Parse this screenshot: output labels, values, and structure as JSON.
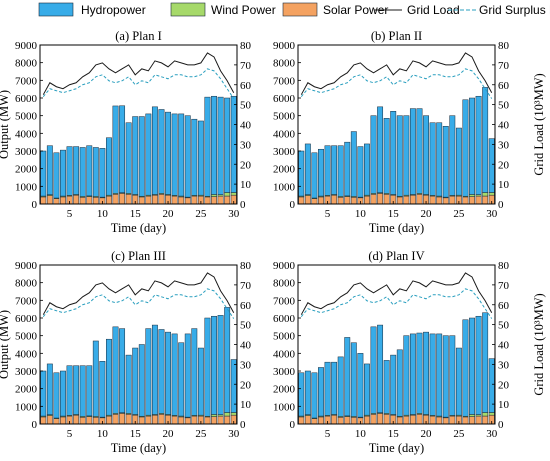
{
  "legend": {
    "hydro": "Hydropower",
    "wind": "Wind Power",
    "solar": "Solar Power",
    "grid_load": "Grid Load",
    "grid_surplus": "Grid Surplus Load"
  },
  "colors": {
    "hydro": "#38ace8",
    "wind": "#a6d96a",
    "solar": "#f4a261",
    "bar_edge": "#1a2a3a",
    "grid_load": "#1a1a1a",
    "grid_surplus": "#2a9fbf"
  },
  "axis_labels": {
    "x": "Time (day)",
    "y_left": "Output (MW)",
    "y_right": "Grid Load (10³MW)"
  },
  "chart_data": [
    {
      "type": "bar",
      "title": "(a) Plan I",
      "x": [
        1,
        2,
        3,
        4,
        5,
        6,
        7,
        8,
        9,
        10,
        11,
        12,
        13,
        14,
        15,
        16,
        17,
        18,
        19,
        20,
        21,
        22,
        23,
        24,
        25,
        26,
        27,
        28,
        29,
        30
      ],
      "xticks": [
        5,
        10,
        15,
        20,
        25,
        30
      ],
      "ylim_left": [
        0,
        9000
      ],
      "yticks_left": [
        0,
        1000,
        2000,
        3000,
        4000,
        5000,
        6000,
        7000,
        8000,
        9000
      ],
      "ylim_right": [
        0,
        80
      ],
      "yticks_right": [
        0,
        10,
        20,
        30,
        40,
        50,
        60,
        70,
        80
      ],
      "stacked": true,
      "series": [
        {
          "name": "Solar Power",
          "values": [
            400,
            480,
            300,
            400,
            450,
            500,
            380,
            420,
            380,
            350,
            450,
            550,
            600,
            550,
            500,
            400,
            450,
            500,
            550,
            500,
            450,
            400,
            350,
            450,
            450,
            400,
            420,
            450,
            450,
            500
          ]
        },
        {
          "name": "Wind Power",
          "values": [
            50,
            50,
            40,
            50,
            40,
            40,
            50,
            40,
            50,
            40,
            50,
            50,
            40,
            50,
            40,
            40,
            50,
            40,
            50,
            40,
            40,
            50,
            40,
            40,
            50,
            40,
            120,
            80,
            200,
            150
          ]
        },
        {
          "name": "Hydropower",
          "values": [
            2550,
            2770,
            2560,
            2600,
            2760,
            2710,
            2770,
            2840,
            2770,
            2760,
            3250,
            4950,
            4920,
            4000,
            4410,
            4510,
            4600,
            4960,
            4750,
            4660,
            4610,
            4650,
            4610,
            4310,
            4200,
            5610,
            5560,
            5520,
            5350,
            5450
          ]
        }
      ],
      "lines": [
        {
          "name": "Grid Load",
          "axis": "right",
          "values": [
            55,
            61,
            59,
            58,
            60,
            61,
            64,
            66,
            70,
            71,
            68,
            66,
            68,
            70,
            65,
            68,
            67,
            72,
            71,
            69,
            72,
            71,
            70,
            70,
            71,
            76,
            74,
            67,
            62,
            56
          ]
        },
        {
          "name": "Grid Surplus Load",
          "axis": "right",
          "values": [
            54,
            58,
            57,
            56,
            57,
            58,
            60,
            61,
            64,
            65,
            62,
            61,
            62,
            64,
            60,
            62,
            61,
            65,
            64,
            63,
            65,
            65,
            64,
            64,
            65,
            68,
            67,
            63,
            58,
            53
          ]
        }
      ]
    },
    {
      "type": "bar",
      "title": "(b) Plan II",
      "x": [
        1,
        2,
        3,
        4,
        5,
        6,
        7,
        8,
        9,
        10,
        11,
        12,
        13,
        14,
        15,
        16,
        17,
        18,
        19,
        20,
        21,
        22,
        23,
        24,
        25,
        26,
        27,
        28,
        29,
        30
      ],
      "xticks": [
        5,
        10,
        15,
        20,
        25,
        30
      ],
      "ylim_left": [
        0,
        9000
      ],
      "yticks_left": [
        0,
        1000,
        2000,
        3000,
        4000,
        5000,
        6000,
        7000,
        8000,
        9000
      ],
      "ylim_right": [
        0,
        80
      ],
      "yticks_right": [
        0,
        10,
        20,
        30,
        40,
        50,
        60,
        70,
        80
      ],
      "stacked": true,
      "series": [
        {
          "name": "Solar Power",
          "values": [
            400,
            480,
            300,
            400,
            450,
            500,
            380,
            420,
            380,
            350,
            450,
            550,
            600,
            550,
            500,
            400,
            450,
            500,
            550,
            500,
            450,
            400,
            350,
            450,
            450,
            400,
            420,
            450,
            450,
            500
          ]
        },
        {
          "name": "Wind Power",
          "values": [
            50,
            50,
            40,
            50,
            40,
            40,
            50,
            40,
            50,
            40,
            50,
            50,
            40,
            50,
            40,
            40,
            50,
            40,
            50,
            40,
            40,
            50,
            40,
            40,
            50,
            40,
            120,
            80,
            200,
            150
          ]
        },
        {
          "name": "Hydropower",
          "values": [
            2550,
            2870,
            2560,
            2650,
            2810,
            2760,
            2870,
            3040,
            3670,
            2860,
            2900,
            4400,
            4860,
            4250,
            4710,
            4560,
            4500,
            4860,
            4800,
            4460,
            4110,
            4150,
            4010,
            4510,
            3800,
            5460,
            5460,
            5570,
            5950,
            3050
          ]
        }
      ],
      "lines": [
        {
          "name": "Grid Load",
          "axis": "right",
          "values": [
            55,
            61,
            59,
            58,
            60,
            61,
            64,
            66,
            70,
            71,
            68,
            66,
            68,
            70,
            65,
            68,
            67,
            72,
            71,
            69,
            72,
            71,
            70,
            70,
            71,
            76,
            74,
            67,
            62,
            56
          ]
        },
        {
          "name": "Grid Surplus Load",
          "axis": "right",
          "values": [
            54,
            58,
            57,
            56,
            57,
            58,
            60,
            61,
            64,
            65,
            62,
            61,
            62,
            64,
            60,
            62,
            61,
            65,
            64,
            63,
            65,
            65,
            64,
            64,
            65,
            68,
            67,
            63,
            58,
            53
          ]
        }
      ]
    },
    {
      "type": "bar",
      "title": "(c) Plan III",
      "x": [
        1,
        2,
        3,
        4,
        5,
        6,
        7,
        8,
        9,
        10,
        11,
        12,
        13,
        14,
        15,
        16,
        17,
        18,
        19,
        20,
        21,
        22,
        23,
        24,
        25,
        26,
        27,
        28,
        29,
        30
      ],
      "xticks": [
        5,
        10,
        15,
        20,
        25,
        30
      ],
      "ylim_left": [
        0,
        9000
      ],
      "yticks_left": [
        0,
        1000,
        2000,
        3000,
        4000,
        5000,
        6000,
        7000,
        8000,
        9000
      ],
      "ylim_right": [
        0,
        80
      ],
      "yticks_right": [
        0,
        10,
        20,
        30,
        40,
        50,
        60,
        70,
        80
      ],
      "stacked": true,
      "series": [
        {
          "name": "Solar Power",
          "values": [
            400,
            480,
            300,
            400,
            450,
            500,
            380,
            420,
            380,
            350,
            450,
            550,
            600,
            550,
            500,
            400,
            450,
            500,
            550,
            500,
            450,
            400,
            350,
            450,
            450,
            400,
            420,
            450,
            450,
            500
          ]
        },
        {
          "name": "Wind Power",
          "values": [
            50,
            50,
            40,
            50,
            40,
            40,
            50,
            40,
            50,
            40,
            50,
            50,
            40,
            50,
            40,
            40,
            50,
            40,
            50,
            40,
            40,
            50,
            40,
            40,
            50,
            40,
            120,
            80,
            200,
            150
          ]
        },
        {
          "name": "Hydropower",
          "values": [
            2550,
            2870,
            2560,
            2550,
            2810,
            2760,
            2870,
            2840,
            4270,
            3160,
            4300,
            4900,
            4760,
            3300,
            3760,
            4060,
            4900,
            5060,
            4750,
            4660,
            4610,
            4150,
            4710,
            4910,
            3800,
            5560,
            5560,
            5620,
            5950,
            3000
          ]
        }
      ],
      "lines": [
        {
          "name": "Grid Load",
          "axis": "right",
          "values": [
            55,
            61,
            59,
            58,
            60,
            61,
            64,
            66,
            70,
            71,
            68,
            66,
            68,
            70,
            65,
            68,
            67,
            72,
            71,
            69,
            72,
            71,
            70,
            70,
            71,
            76,
            74,
            67,
            62,
            56
          ]
        },
        {
          "name": "Grid Surplus Load",
          "axis": "right",
          "values": [
            54,
            58,
            57,
            56,
            57,
            58,
            60,
            61,
            64,
            65,
            62,
            61,
            62,
            64,
            60,
            62,
            61,
            65,
            64,
            63,
            65,
            65,
            64,
            64,
            65,
            68,
            67,
            63,
            58,
            53
          ]
        }
      ]
    },
    {
      "type": "bar",
      "title": "(d) Plan IV",
      "x": [
        1,
        2,
        3,
        4,
        5,
        6,
        7,
        8,
        9,
        10,
        11,
        12,
        13,
        14,
        15,
        16,
        17,
        18,
        19,
        20,
        21,
        22,
        23,
        24,
        25,
        26,
        27,
        28,
        29,
        30
      ],
      "xticks": [
        5,
        10,
        15,
        20,
        25,
        30
      ],
      "ylim_left": [
        0,
        9000
      ],
      "yticks_left": [
        0,
        1000,
        2000,
        3000,
        4000,
        5000,
        6000,
        7000,
        8000,
        9000
      ],
      "ylim_right": [
        0,
        80
      ],
      "yticks_right": [
        0,
        10,
        20,
        30,
        40,
        50,
        60,
        70,
        80
      ],
      "stacked": true,
      "series": [
        {
          "name": "Solar Power",
          "values": [
            400,
            480,
            300,
            400,
            450,
            500,
            380,
            420,
            380,
            350,
            450,
            550,
            600,
            550,
            500,
            400,
            450,
            500,
            550,
            500,
            450,
            400,
            350,
            450,
            450,
            400,
            420,
            450,
            450,
            500
          ]
        },
        {
          "name": "Wind Power",
          "values": [
            50,
            50,
            40,
            50,
            40,
            40,
            50,
            40,
            50,
            40,
            50,
            50,
            40,
            50,
            40,
            40,
            50,
            40,
            50,
            40,
            40,
            50,
            40,
            40,
            50,
            40,
            120,
            80,
            200,
            150
          ]
        },
        {
          "name": "Hydropower",
          "values": [
            2450,
            2470,
            2560,
            2750,
            3010,
            2960,
            3370,
            4440,
            4170,
            3610,
            2900,
            4900,
            4960,
            3000,
            3360,
            3760,
            4500,
            4560,
            4550,
            4660,
            4610,
            4650,
            4610,
            4510,
            3800,
            5460,
            5460,
            5570,
            5650,
            3050
          ]
        }
      ],
      "lines": [
        {
          "name": "Grid Load",
          "axis": "right",
          "values": [
            55,
            61,
            59,
            58,
            60,
            61,
            64,
            66,
            70,
            71,
            68,
            66,
            68,
            70,
            65,
            68,
            67,
            72,
            71,
            69,
            72,
            71,
            70,
            70,
            71,
            76,
            74,
            67,
            62,
            56
          ]
        },
        {
          "name": "Grid Surplus Load",
          "axis": "right",
          "values": [
            54,
            58,
            57,
            56,
            57,
            58,
            60,
            61,
            64,
            65,
            62,
            61,
            62,
            64,
            60,
            62,
            61,
            65,
            64,
            63,
            65,
            65,
            64,
            64,
            65,
            68,
            67,
            63,
            58,
            53
          ]
        }
      ]
    }
  ]
}
